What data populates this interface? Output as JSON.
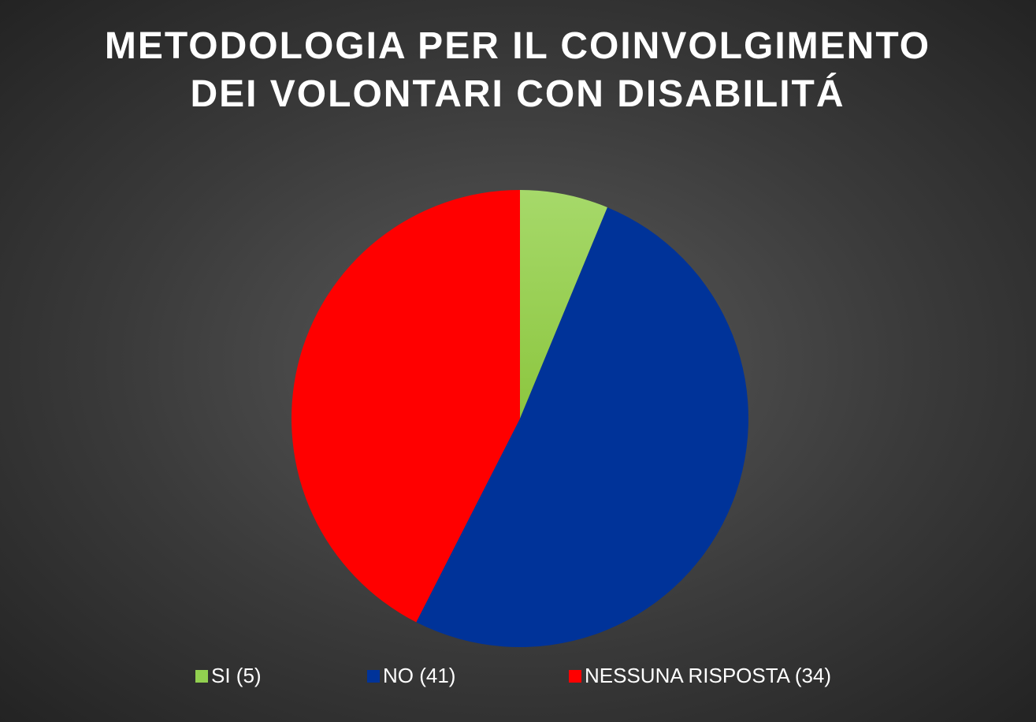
{
  "chart_data": {
    "type": "pie",
    "title": "METODOLOGIA PER IL COINVOLGIMENTO DEI VOLONTARI CON DISABILITÁ",
    "categories": [
      "SI (5)",
      "NO (41)",
      "NESSUNA RISPOSTA (34)"
    ],
    "values": [
      5,
      41,
      34
    ],
    "colors": [
      "#92d050",
      "#003399",
      "#ff0000"
    ],
    "legend": "bottom"
  }
}
